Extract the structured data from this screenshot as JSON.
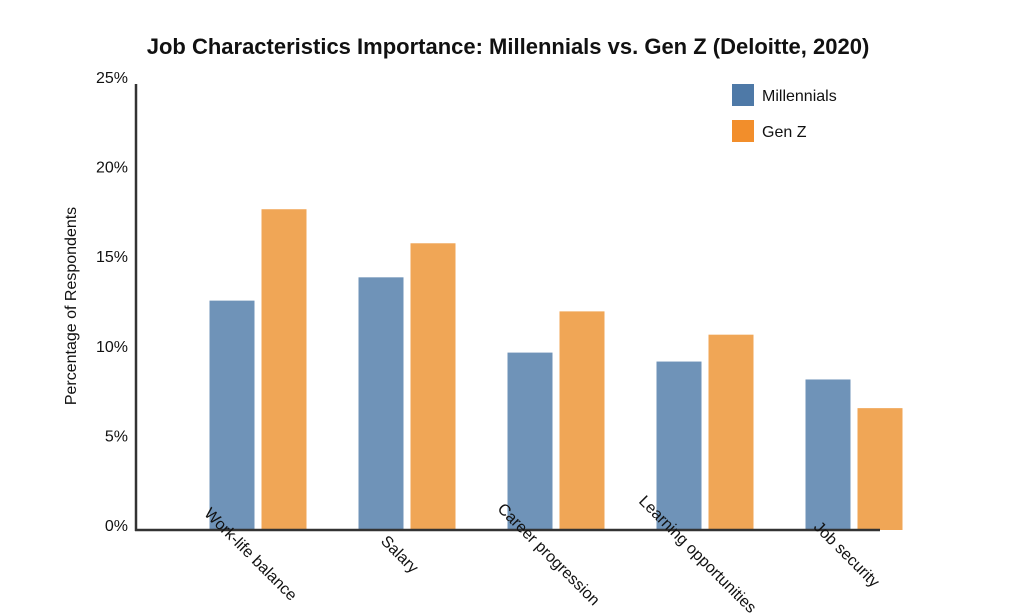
{
  "chart_data": {
    "type": "bar",
    "title": "Job Characteristics Importance: Millennials vs. Gen Z (Deloitte, 2020)",
    "xlabel": "",
    "ylabel": "Percentage of Respondents",
    "ylim": [
      0,
      25
    ],
    "yticks": [
      0,
      5,
      10,
      15,
      20,
      25
    ],
    "ytick_labels": [
      "0%",
      "5%",
      "10%",
      "15%",
      "20%",
      "25%"
    ],
    "grid": false,
    "legend_position": "top-right",
    "categories": [
      "Work-life balance",
      "Salary",
      "Career progression",
      "Learning opportunities",
      "Job security"
    ],
    "series": [
      {
        "name": "Millennials",
        "color": "#6f93b8",
        "legend_color": "#4e79a7",
        "values": [
          12.8,
          14.1,
          9.9,
          9.4,
          8.4
        ]
      },
      {
        "name": "Gen Z",
        "color": "#f0a656",
        "legend_color": "#f28e2b",
        "values": [
          17.9,
          16.0,
          12.2,
          10.9,
          6.8
        ]
      }
    ]
  }
}
